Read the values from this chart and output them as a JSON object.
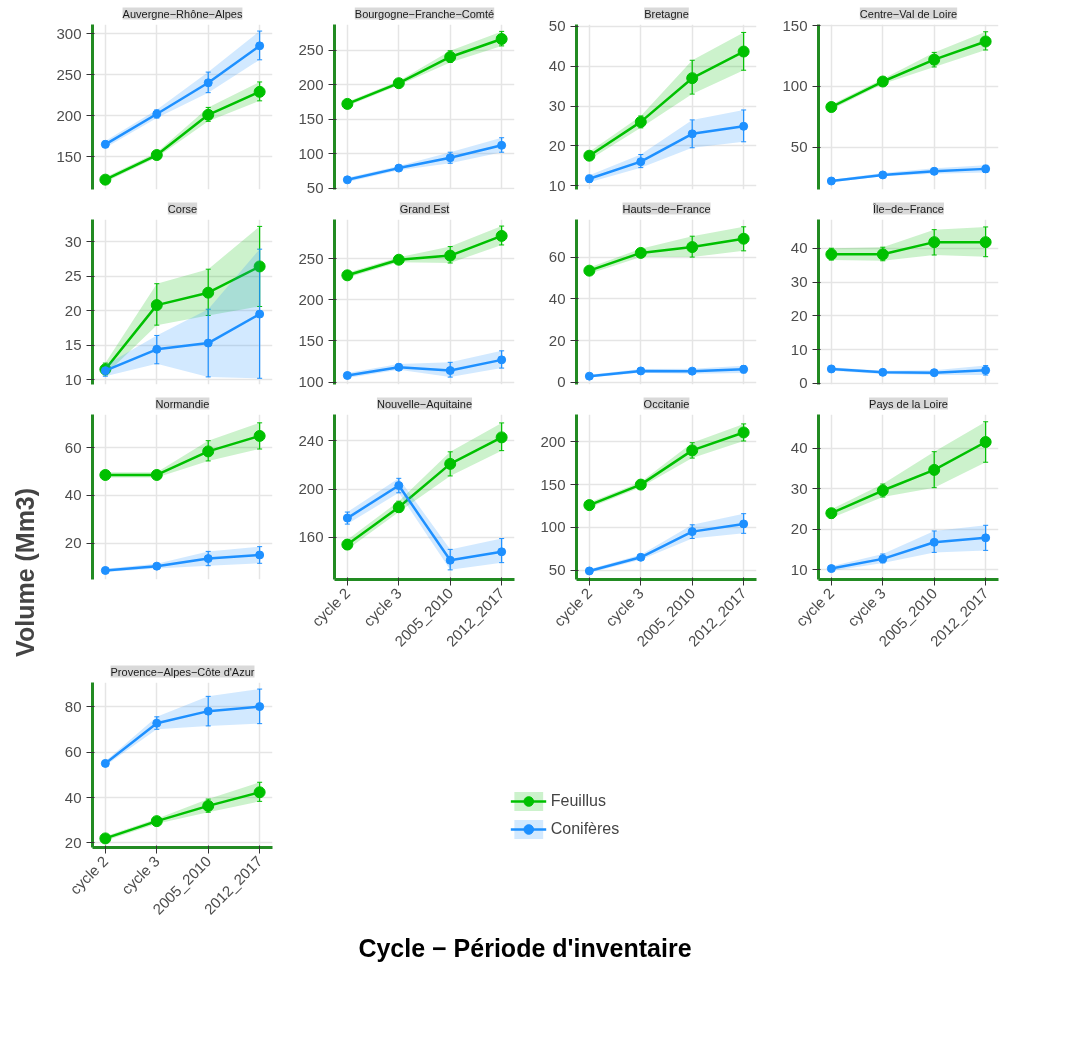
{
  "chart_data": [
    {
      "type": "line",
      "title": "Auvergne−Rhône−Alpes",
      "xlabel": "Cycle − Période d'inventaire",
      "categories": [
        "cycle 2",
        "cycle 3",
        "2005_2010",
        "2012_2017"
      ],
      "ylim": [
        110,
        311
      ],
      "yticks": [
        150,
        200,
        250,
        300
      ],
      "grid": true,
      "marker": "circle",
      "tick_labels": "y",
      "series": [
        {
          "color": "#00c000",
          "values": [
            122,
            152,
            201,
            229
          ],
          "lower": [
            119,
            149,
            193,
            218
          ],
          "upper": [
            125,
            155,
            210,
            241
          ],
          "errors": [
            [
              119,
              125
            ],
            [
              149,
              155
            ],
            [
              193,
              210
            ],
            [
              218,
              241
            ]
          ]
        },
        {
          "color": "#1e90ff",
          "values": [
            165,
            202,
            240,
            285
          ],
          "lower": [
            161,
            197,
            228,
            268
          ],
          "upper": [
            169,
            207,
            253,
            303
          ],
          "errors": [
            [
              161,
              169
            ],
            [
              197,
              207
            ],
            [
              228,
              253
            ],
            [
              268,
              303
            ]
          ]
        }
      ]
    },
    {
      "type": "line",
      "title": "Bourgogne−Franche−Comté",
      "categories": [
        "cycle 2",
        "cycle 3",
        "2005_2010",
        "2012_2017"
      ],
      "ylim": [
        48,
        287
      ],
      "yticks": [
        50,
        100,
        150,
        200,
        250
      ],
      "grid": true,
      "marker": "circle",
      "tick_labels": "y",
      "series": [
        {
          "color": "#00c000",
          "values": [
            172,
            202,
            240,
            266
          ],
          "lower": [
            169,
            199,
            232,
            256
          ],
          "upper": [
            175,
            205,
            249,
            277
          ],
          "errors": [
            [
              169,
              175
            ],
            [
              199,
              205
            ],
            [
              232,
              249
            ],
            [
              256,
              277
            ]
          ]
        },
        {
          "color": "#1e90ff",
          "values": [
            62,
            79,
            94,
            112
          ],
          "lower": [
            59,
            76,
            86,
            102
          ],
          "upper": [
            65,
            82,
            102,
            123
          ],
          "errors": [
            [
              59,
              65
            ],
            [
              76,
              82
            ],
            [
              86,
              102
            ],
            [
              102,
              123
            ]
          ]
        }
      ]
    },
    {
      "type": "line",
      "title": "Bretagne",
      "categories": [
        "cycle 2",
        "cycle 3",
        "2005_2010",
        "2012_2017"
      ],
      "ylim": [
        9,
        50.5
      ],
      "yticks": [
        10,
        20,
        30,
        40,
        50
      ],
      "grid": true,
      "marker": "circle",
      "tick_labels": "y",
      "series": [
        {
          "color": "#00c000",
          "values": [
            17.5,
            26,
            37,
            43.7
          ],
          "lower": [
            16.5,
            24.5,
            33,
            39
          ],
          "upper": [
            18.5,
            27.5,
            41.5,
            48.5
          ],
          "errors": [
            [
              16.5,
              18.5
            ],
            [
              24.5,
              27.5
            ],
            [
              33,
              41.5
            ],
            [
              39,
              48.5
            ]
          ]
        },
        {
          "color": "#1e90ff",
          "values": [
            11.7,
            16,
            23,
            24.9
          ],
          "lower": [
            10.8,
            14.5,
            19.5,
            21
          ],
          "upper": [
            12.6,
            17.8,
            26.5,
            29
          ],
          "errors": [
            [
              10.8,
              12.6
            ],
            [
              14.5,
              17.8
            ],
            [
              19.5,
              26.5
            ],
            [
              21,
              29
            ]
          ]
        }
      ]
    },
    {
      "type": "line",
      "title": "Centre−Val de Loire",
      "categories": [
        "cycle 2",
        "cycle 3",
        "2005_2010",
        "2012_2017"
      ],
      "ylim": [
        15,
        151
      ],
      "yticks": [
        50,
        100,
        150
      ],
      "grid": true,
      "marker": "circle",
      "tick_labels": "y",
      "series": [
        {
          "color": "#00c000",
          "values": [
            83,
            104,
            122,
            137
          ],
          "lower": [
            81,
            102,
            116,
            130
          ],
          "upper": [
            85,
            106,
            128,
            145
          ],
          "errors": [
            [
              81,
              85
            ],
            [
              102,
              106
            ],
            [
              116,
              128
            ],
            [
              130,
              145
            ]
          ]
        },
        {
          "color": "#1e90ff",
          "values": [
            22,
            27,
            30,
            32
          ],
          "lower": [
            21,
            26,
            28,
            29
          ],
          "upper": [
            23,
            28.5,
            32.5,
            35
          ],
          "errors": [
            [
              21,
              23
            ],
            [
              26,
              28.5
            ],
            [
              28,
              32.5
            ],
            [
              29,
              35
            ]
          ]
        }
      ]
    },
    {
      "type": "line",
      "title": "Corse",
      "categories": [
        "cycle 2",
        "cycle 3",
        "2005_2010",
        "2012_2017"
      ],
      "ylim": [
        9.3,
        33.2
      ],
      "yticks": [
        10,
        15,
        20,
        25,
        30
      ],
      "grid": true,
      "marker": "circle",
      "tick_labels": "y",
      "series": [
        {
          "color": "#00c000",
          "values": [
            11.5,
            20.8,
            22.6,
            26.4
          ],
          "lower": [
            10.7,
            17.9,
            19.3,
            20.6
          ],
          "upper": [
            12.4,
            23.9,
            26,
            32.2
          ],
          "errors": [
            [
              10.7,
              12.4
            ],
            [
              17.9,
              23.9
            ],
            [
              19.3,
              26
            ],
            [
              20.6,
              32.2
            ]
          ]
        },
        {
          "color": "#1e90ff",
          "values": [
            11.3,
            14.4,
            15.3,
            19.5
          ],
          "lower": [
            10.5,
            12.3,
            10.4,
            10.2
          ],
          "upper": [
            12.1,
            16.4,
            20.2,
            28.9
          ],
          "errors": [
            [
              10.5,
              12.1
            ],
            [
              12.3,
              16.4
            ],
            [
              10.4,
              20.2
            ],
            [
              10.2,
              28.9
            ]
          ]
        }
      ]
    },
    {
      "type": "line",
      "title": "Grand Est",
      "categories": [
        "cycle 2",
        "cycle 3",
        "2005_2010",
        "2012_2017"
      ],
      "ylim": [
        97,
        298
      ],
      "yticks": [
        100,
        150,
        200,
        250
      ],
      "grid": true,
      "marker": "circle",
      "tick_labels": "y",
      "series": [
        {
          "color": "#00c000",
          "values": [
            230,
            249,
            254,
            278
          ],
          "lower": [
            227,
            246,
            245,
            267
          ],
          "upper": [
            233,
            252,
            265,
            290
          ],
          "errors": [
            [
              227,
              233
            ],
            [
              246,
              252
            ],
            [
              245,
              265
            ],
            [
              267,
              290
            ]
          ]
        },
        {
          "color": "#1e90ff",
          "values": [
            108,
            118,
            114,
            127
          ],
          "lower": [
            105,
            115,
            106,
            117
          ],
          "upper": [
            111,
            122,
            124,
            138
          ],
          "errors": [
            [
              105,
              111
            ],
            [
              115,
              122
            ],
            [
              106,
              124
            ],
            [
              117,
              138
            ]
          ]
        }
      ]
    },
    {
      "type": "line",
      "title": "Hauts−de−France",
      "categories": [
        "cycle 2",
        "cycle 3",
        "2005_2010",
        "2012_2017"
      ],
      "ylim": [
        -1,
        78
      ],
      "yticks": [
        0,
        20,
        40,
        60
      ],
      "grid": true,
      "marker": "circle",
      "tick_labels": "y",
      "series": [
        {
          "color": "#00c000",
          "values": [
            53.5,
            62,
            64.8,
            68.8
          ],
          "lower": [
            52,
            60,
            60,
            63
          ],
          "upper": [
            55,
            64,
            70,
            74.5
          ],
          "errors": [
            [
              52,
              55
            ],
            [
              60,
              64
            ],
            [
              60,
              70
            ],
            [
              63,
              74.5
            ]
          ]
        },
        {
          "color": "#1e90ff",
          "values": [
            3,
            5.5,
            5.4,
            6.3
          ],
          "lower": [
            2.3,
            4.6,
            4.2,
            4.5
          ],
          "upper": [
            3.7,
            6.4,
            6.6,
            8
          ],
          "errors": [
            [
              2.3,
              3.7
            ],
            [
              4.6,
              6.4
            ],
            [
              4.2,
              6.6
            ],
            [
              4.5,
              8
            ]
          ]
        }
      ]
    },
    {
      "type": "line",
      "title": "Île−de−France",
      "categories": [
        "cycle 2",
        "cycle 3",
        "2005_2010",
        "2012_2017"
      ],
      "ylim": [
        -0.3,
        48.5
      ],
      "yticks": [
        0,
        10,
        20,
        30,
        40
      ],
      "grid": true,
      "marker": "circle",
      "tick_labels": "y",
      "series": [
        {
          "color": "#00c000",
          "values": [
            38.2,
            38.2,
            41.8,
            41.8
          ],
          "lower": [
            36.5,
            36.3,
            38,
            37.5
          ],
          "upper": [
            40,
            40.3,
            45.5,
            46.3
          ],
          "errors": [
            [
              36.5,
              40
            ],
            [
              36.3,
              40.3
            ],
            [
              38,
              45.5
            ],
            [
              37.5,
              46.3
            ]
          ]
        },
        {
          "color": "#1e90ff",
          "values": [
            4.3,
            3.3,
            3.2,
            3.9
          ],
          "lower": [
            3.8,
            2.8,
            2.5,
            2.5
          ],
          "upper": [
            4.8,
            3.8,
            3.9,
            5.3
          ],
          "errors": [
            [
              3.8,
              4.8
            ],
            [
              2.8,
              3.8
            ],
            [
              2.5,
              3.9
            ],
            [
              2.5,
              5.3
            ]
          ]
        }
      ]
    },
    {
      "type": "line",
      "title": "Normandie",
      "ylabel": "Volume (Mm3)",
      "categories": [
        "cycle 2",
        "cycle 3",
        "2005_2010",
        "2012_2017"
      ],
      "ylim": [
        4.7,
        74
      ],
      "yticks": [
        20,
        40,
        60
      ],
      "grid": true,
      "marker": "circle",
      "tick_labels": "y",
      "series": [
        {
          "color": "#00c000",
          "values": [
            48.6,
            48.6,
            58.5,
            65
          ],
          "lower": [
            47.5,
            47.5,
            54.5,
            59.5
          ],
          "upper": [
            49.7,
            49.7,
            63,
            70.5
          ],
          "errors": [
            [
              47.5,
              49.7
            ],
            [
              47.5,
              49.7
            ],
            [
              54.5,
              63
            ],
            [
              59.5,
              70.5
            ]
          ]
        },
        {
          "color": "#1e90ff",
          "values": [
            8.5,
            10.3,
            13.5,
            15
          ],
          "lower": [
            7.8,
            9.3,
            10.5,
            11.5
          ],
          "upper": [
            9.2,
            11.3,
            16.5,
            18.5
          ],
          "errors": [
            [
              7.8,
              9.2
            ],
            [
              9.3,
              11.3
            ],
            [
              10.5,
              16.5
            ],
            [
              11.5,
              18.5
            ]
          ]
        }
      ]
    },
    {
      "type": "line",
      "title": "Nouvelle−Aquitaine",
      "categories": [
        "cycle 2",
        "cycle 3",
        "2005_2010",
        "2012_2017"
      ],
      "ylim": [
        125,
        262
      ],
      "yticks": [
        160,
        200,
        240
      ],
      "grid": true,
      "marker": "circle",
      "series": [
        {
          "color": "#00c000",
          "values": [
            154,
            185,
            221,
            243
          ],
          "lower": [
            150,
            181,
            211,
            232
          ],
          "upper": [
            158,
            190,
            231,
            255
          ],
          "errors": [
            [
              150,
              158
            ],
            [
              181,
              190
            ],
            [
              211,
              231
            ],
            [
              232,
              255
            ]
          ]
        },
        {
          "color": "#1e90ff",
          "values": [
            176,
            203,
            141,
            148
          ],
          "lower": [
            171,
            197,
            133,
            139
          ],
          "upper": [
            181,
            209,
            150,
            159
          ],
          "errors": [
            [
              171,
              181
            ],
            [
              197,
              209
            ],
            [
              133,
              150
            ],
            [
              139,
              159
            ]
          ]
        }
      ]
    },
    {
      "type": "line",
      "title": "Occitanie",
      "categories": [
        "cycle 2",
        "cycle 3",
        "2005_2010",
        "2012_2017"
      ],
      "ylim": [
        39,
        232
      ],
      "yticks": [
        50,
        100,
        150,
        200
      ],
      "grid": true,
      "marker": "circle",
      "series": [
        {
          "color": "#00c000",
          "values": [
            126,
            150,
            190,
            211
          ],
          "lower": [
            123,
            147,
            181,
            201
          ],
          "upper": [
            129,
            153,
            199,
            221
          ],
          "errors": [
            [
              123,
              129
            ],
            [
              147,
              153
            ],
            [
              181,
              199
            ],
            [
              201,
              221
            ]
          ]
        },
        {
          "color": "#1e90ff",
          "values": [
            49,
            65,
            95,
            104
          ],
          "lower": [
            47,
            62,
            87,
            93
          ],
          "upper": [
            51,
            68,
            103,
            116
          ],
          "errors": [
            [
              47,
              51
            ],
            [
              62,
              68
            ],
            [
              87,
              103
            ],
            [
              93,
              116
            ]
          ]
        }
      ]
    },
    {
      "type": "line",
      "title": "Pays de la Loire",
      "categories": [
        "cycle 2",
        "cycle 3",
        "2005_2010",
        "2012_2017"
      ],
      "ylim": [
        7.6,
        48.4
      ],
      "yticks": [
        10,
        20,
        30,
        40
      ],
      "grid": true,
      "marker": "circle",
      "series": [
        {
          "color": "#00c000",
          "values": [
            24,
            29.6,
            34.7,
            41.6
          ],
          "lower": [
            22.8,
            28,
            30.3,
            36.6
          ],
          "upper": [
            25,
            31.2,
            39.2,
            46.6
          ],
          "errors": [
            [
              22.8,
              25
            ],
            [
              28,
              31.2
            ],
            [
              30.3,
              39.2
            ],
            [
              36.6,
              46.6
            ]
          ]
        },
        {
          "color": "#1e90ff",
          "values": [
            10.3,
            12.7,
            16.8,
            17.9
          ],
          "lower": [
            9.7,
            11.7,
            14.3,
            14.8
          ],
          "upper": [
            10.9,
            13.9,
            19.6,
            21
          ],
          "errors": [
            [
              9.7,
              10.9
            ],
            [
              11.7,
              13.9
            ],
            [
              14.3,
              19.6
            ],
            [
              14.8,
              21
            ]
          ]
        }
      ]
    },
    {
      "type": "line",
      "title": "Provence−Alpes−Côte d'Azur",
      "categories": [
        "cycle 2",
        "cycle 3",
        "2005_2010",
        "2012_2017"
      ],
      "ylim": [
        18,
        90.6
      ],
      "yticks": [
        20,
        40,
        60,
        80
      ],
      "grid": true,
      "marker": "circle",
      "legend": "right",
      "series": [
        {
          "name": "Feuillus",
          "color": "#00c000",
          "values": [
            22,
            29.6,
            36.3,
            42.3
          ],
          "lower": [
            21,
            28.5,
            33.5,
            38.3
          ],
          "upper": [
            23,
            30.7,
            39.3,
            46.7
          ],
          "errors": [
            [
              21,
              23
            ],
            [
              28.5,
              30.7
            ],
            [
              33.5,
              39.3
            ],
            [
              38.3,
              46.7
            ]
          ]
        },
        {
          "name": "Conifères",
          "color": "#1e90ff",
          "values": [
            55,
            72.7,
            78,
            80
          ],
          "lower": [
            54,
            70,
            71.5,
            72.5
          ],
          "upper": [
            56,
            75.5,
            84.5,
            87.7
          ],
          "errors": [
            [
              54,
              56
            ],
            [
              70,
              75.5
            ],
            [
              71.5,
              84.5
            ],
            [
              72.5,
              87.7
            ]
          ]
        }
      ]
    }
  ]
}
